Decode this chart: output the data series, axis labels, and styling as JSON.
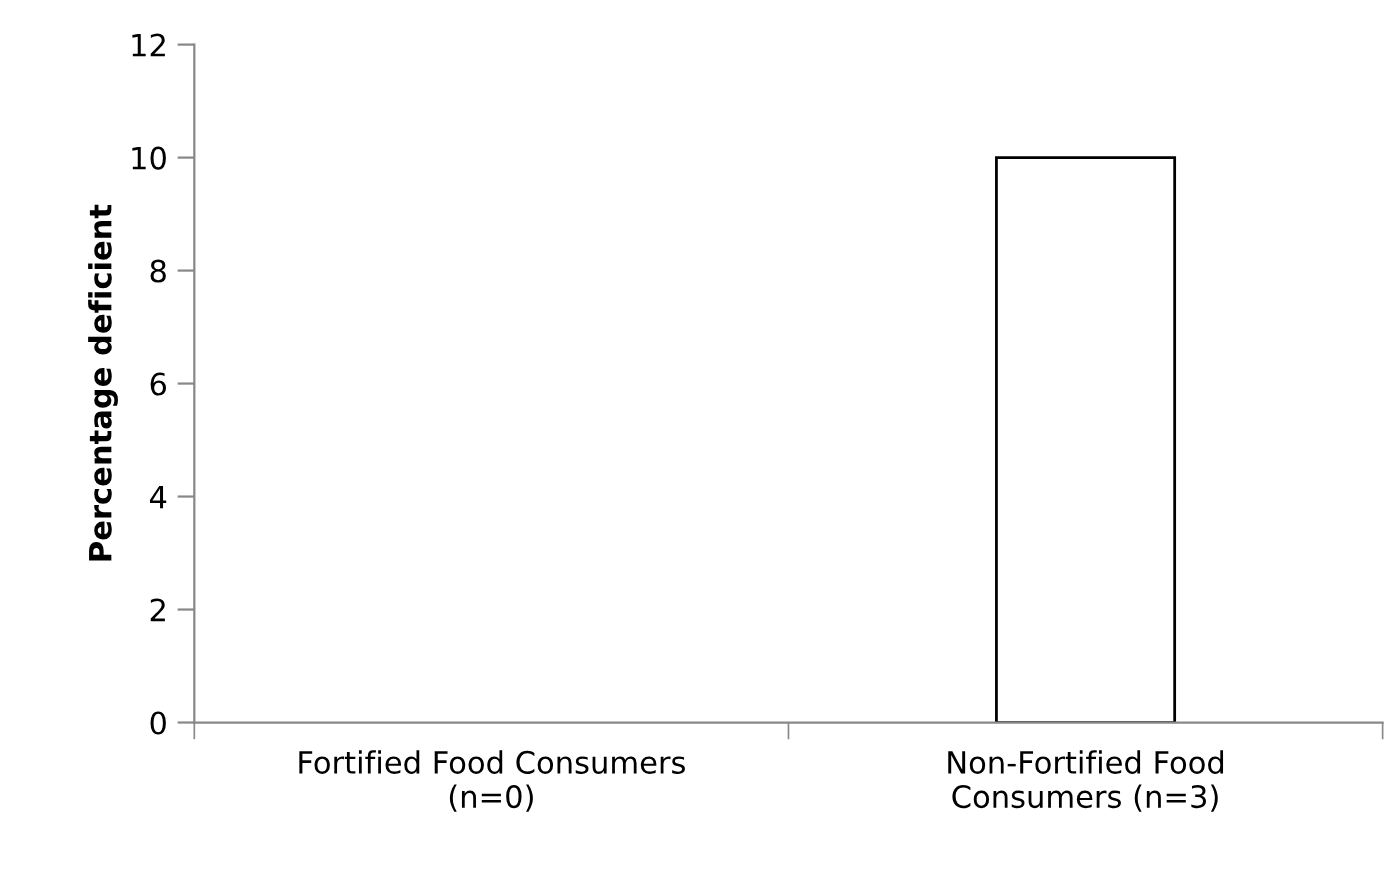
{
  "chart_data": {
    "type": "bar",
    "ylabel": "Percentage deficient",
    "categories": [
      "Fortified Food Consumers\n(n=0)",
      "Non-Fortified Food\nConsumers (n=3)"
    ],
    "values": [
      0,
      10
    ],
    "color": "#ffffff",
    "ylim": [
      0,
      12
    ],
    "yticks": [
      0,
      2,
      4,
      6,
      8,
      10,
      12
    ],
    "grid": false,
    "legend": false
  }
}
